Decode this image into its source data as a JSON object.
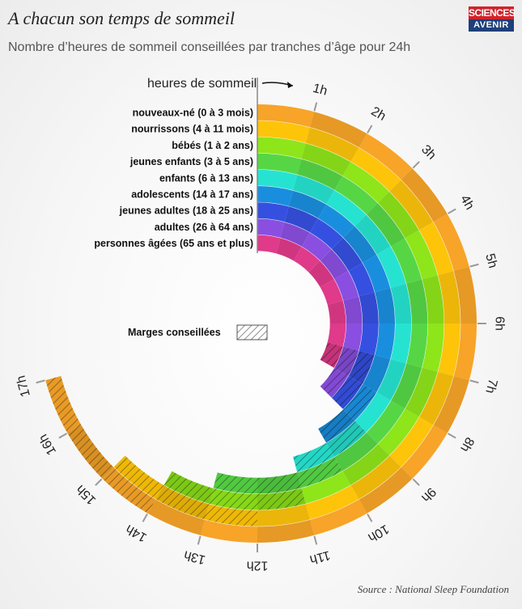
{
  "header": {
    "title": "A chacun son temps de sommeil",
    "subtitle": "Nombre d’heures de sommeil conseillées par tranches d’âge pour 24h"
  },
  "logo": {
    "line1": "SCIENCES",
    "line2": "AVENIR"
  },
  "source": "Source : National Sleep Foundation",
  "chart_data": {
    "type": "radial-bar",
    "axis_label": "heures de sommeil",
    "hour_ticks": [
      "1h",
      "2h",
      "3h",
      "4h",
      "5h",
      "6h",
      "7h",
      "8h",
      "9h",
      "10h",
      "11h",
      "12h",
      "13h",
      "14h",
      "15h",
      "16h",
      "17h"
    ],
    "hour_range": [
      0,
      17
    ],
    "legend": {
      "label": "Marges conseillées"
    },
    "categories": [
      {
        "label": "nouveaux-né (0 à 3 mois)",
        "min": 14,
        "max": 17,
        "color": "#f7a428"
      },
      {
        "label": "nourrissons (4 à 11 mois)",
        "min": 12,
        "max": 15,
        "color": "#fdc40a"
      },
      {
        "label": "bébés (1 à 2 ans)",
        "min": 11,
        "max": 14,
        "color": "#8ee51a"
      },
      {
        "label": "jeunes enfants (3 à 5 ans)",
        "min": 10,
        "max": 13,
        "color": "#56d645"
      },
      {
        "label": "enfants (6 à 13 ans)",
        "min": 9,
        "max": 11,
        "color": "#26e3d1"
      },
      {
        "label": "adolescents (14 à 17 ans)",
        "min": 8,
        "max": 10,
        "color": "#1a8ede"
      },
      {
        "label": "jeunes adultes (18 à 25 ans)",
        "min": 7,
        "max": 9,
        "color": "#3550e0"
      },
      {
        "label": "adultes (26 à 64 ans)",
        "min": 7,
        "max": 9,
        "color": "#8a4fe0"
      },
      {
        "label": "personnes âgées (65 ans et plus)",
        "min": 7,
        "max": 8,
        "color": "#e03a8a"
      }
    ]
  }
}
